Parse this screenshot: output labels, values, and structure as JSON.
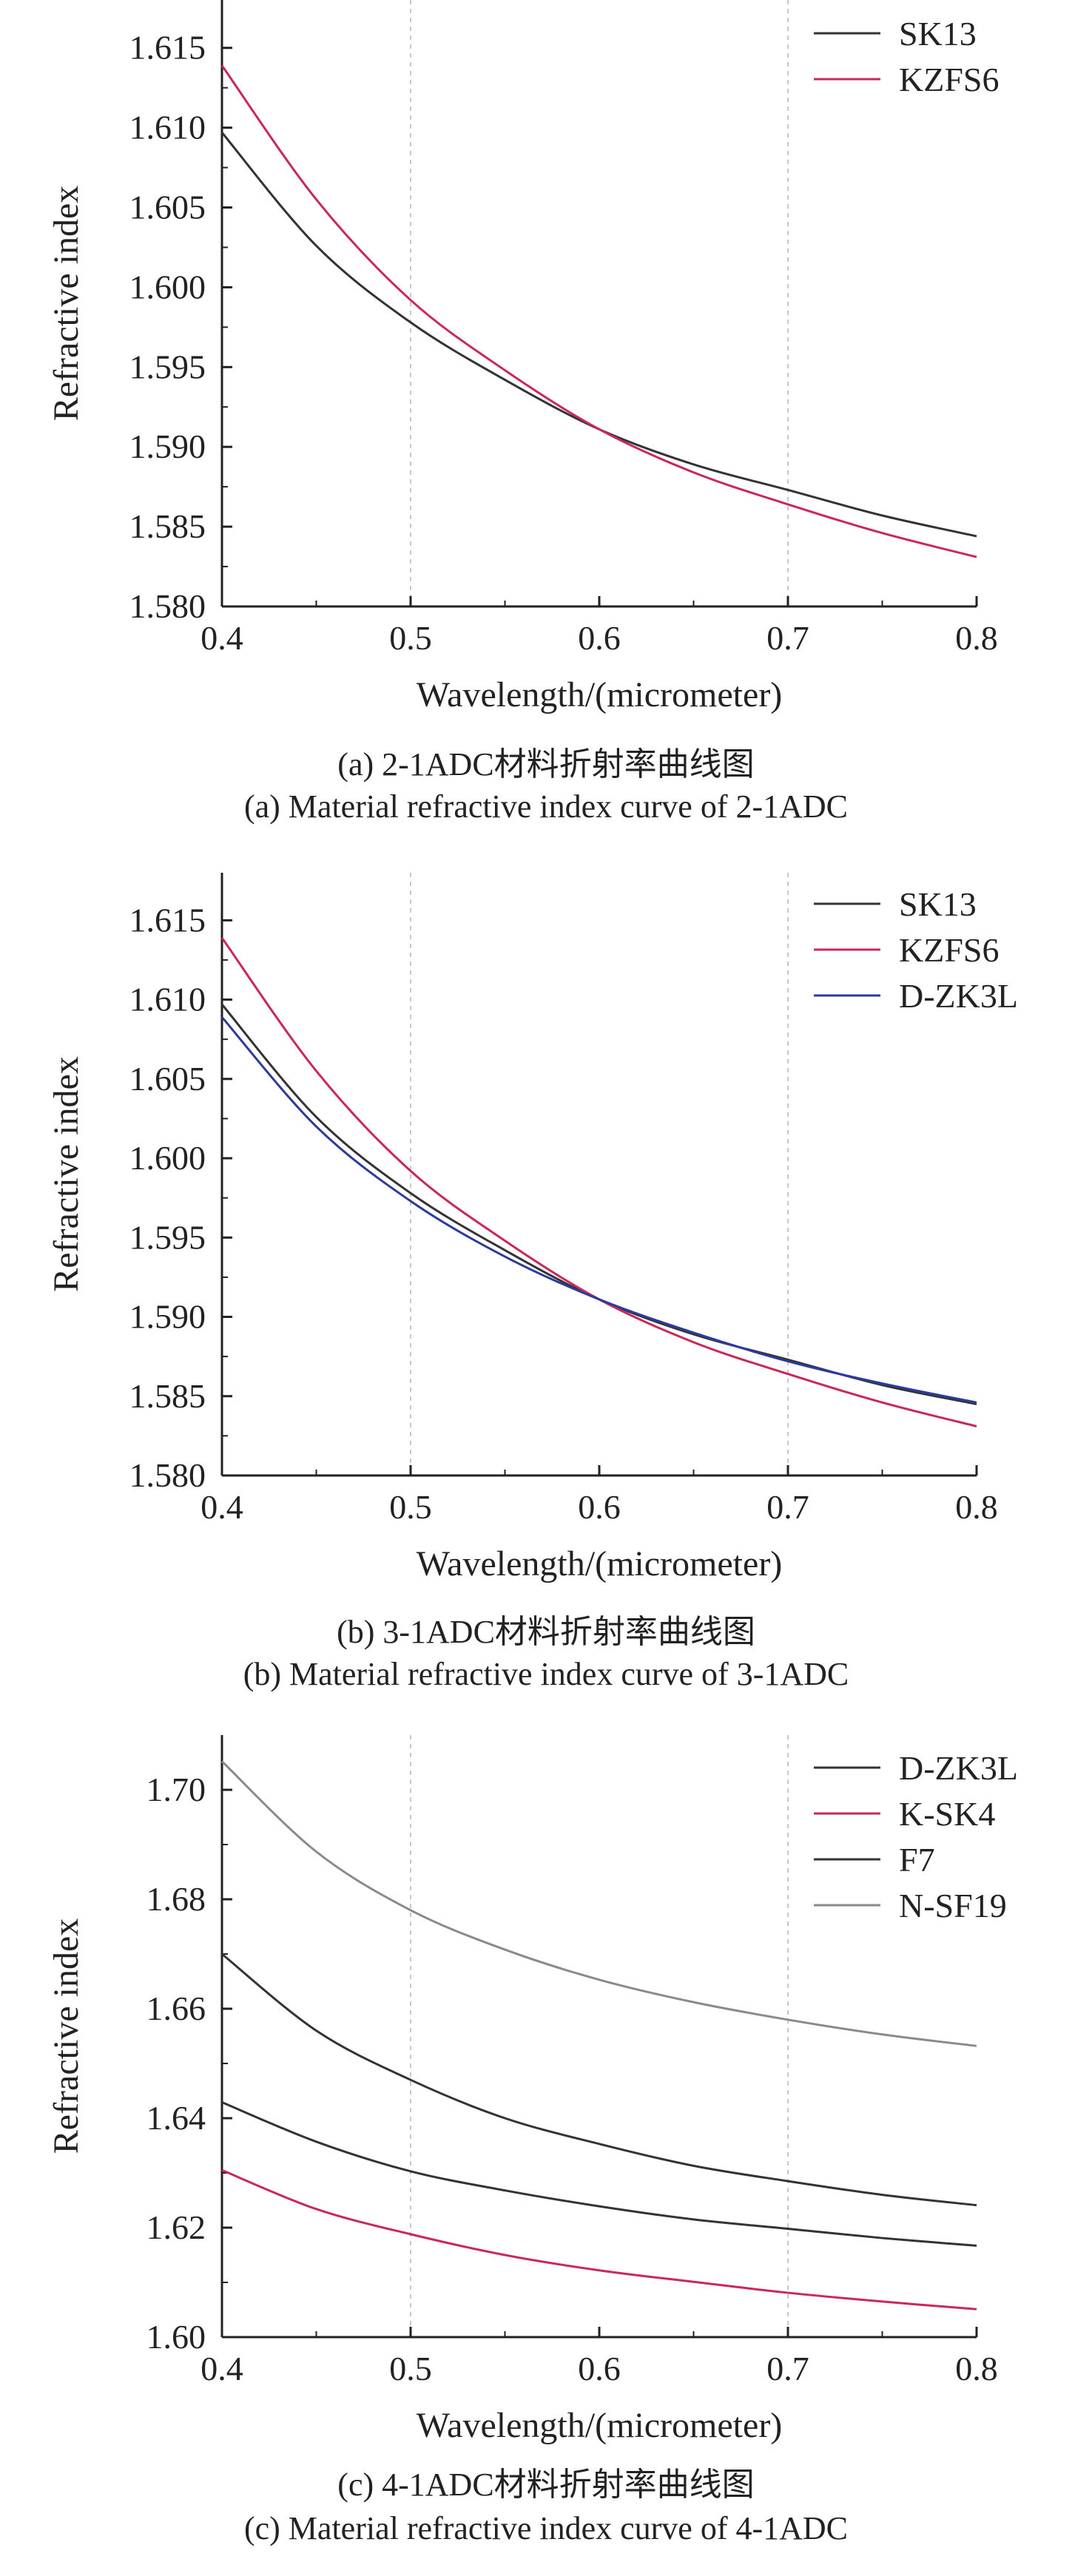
{
  "chart_data": [
    {
      "type": "line",
      "xlabel": "Wavelength/(micrometer)",
      "ylabel": "Refractive index",
      "xlim": [
        0.4,
        0.8
      ],
      "ylim": [
        1.58,
        1.618
      ],
      "xticks": [
        "0.4",
        "0.5",
        "0.6",
        "0.7",
        "0.8"
      ],
      "yticks": [
        "1.580",
        "1.585",
        "1.590",
        "1.595",
        "1.600",
        "1.605",
        "1.610",
        "1.615"
      ],
      "grid": "dashed vertical at 0.5 and 0.7",
      "legend": "top-right",
      "caption_cn": "(a) 2-1ADC材料折射率曲线图",
      "caption_en": "(a) Material refractive index curve of 2-1ADC",
      "x": [
        0.4,
        0.45,
        0.5,
        0.55,
        0.6,
        0.65,
        0.7,
        0.75,
        0.8
      ],
      "series": [
        {
          "name": "SK13",
          "color": "#333333",
          "values": [
            1.6097,
            1.6026,
            1.5978,
            1.5942,
            1.5911,
            1.5889,
            1.5873,
            1.5857,
            1.5844
          ]
        },
        {
          "name": "KZFS6",
          "color": "#c8285a",
          "values": [
            1.6139,
            1.6055,
            1.5992,
            1.5948,
            1.5911,
            1.5884,
            1.5864,
            1.5846,
            1.5831
          ]
        }
      ]
    },
    {
      "type": "line",
      "xlabel": "Wavelength/(micrometer)",
      "ylabel": "Refractive index",
      "xlim": [
        0.4,
        0.8
      ],
      "ylim": [
        1.58,
        1.618
      ],
      "xticks": [
        "0.4",
        "0.5",
        "0.6",
        "0.7",
        "0.8"
      ],
      "yticks": [
        "1.580",
        "1.585",
        "1.590",
        "1.595",
        "1.600",
        "1.605",
        "1.610",
        "1.615"
      ],
      "grid": "dashed vertical at 0.5 and 0.7",
      "legend": "top-right",
      "caption_cn": "(b) 3-1ADC材料折射率曲线图",
      "caption_en": "(b) Material refractive index curve of 3-1ADC",
      "x": [
        0.4,
        0.45,
        0.5,
        0.55,
        0.6,
        0.65,
        0.7,
        0.75,
        0.8
      ],
      "series": [
        {
          "name": "SK13",
          "color": "#333333",
          "values": [
            1.6097,
            1.6026,
            1.5978,
            1.5942,
            1.5911,
            1.5889,
            1.5873,
            1.5857,
            1.5845
          ]
        },
        {
          "name": "KZFS6",
          "color": "#c8285a",
          "values": [
            1.6139,
            1.6055,
            1.5992,
            1.5948,
            1.5911,
            1.5884,
            1.5864,
            1.5846,
            1.5831
          ]
        },
        {
          "name": "D-ZK3L",
          "color": "#2b3a9e",
          "values": [
            1.6089,
            1.602,
            1.5973,
            1.5938,
            1.5911,
            1.589,
            1.5872,
            1.5858,
            1.5846
          ]
        }
      ]
    },
    {
      "type": "line",
      "xlabel": "Wavelength/(micrometer)",
      "ylabel": "Refractive index",
      "xlim": [
        0.4,
        0.8
      ],
      "ylim": [
        1.6,
        1.71
      ],
      "xticks": [
        "0.4",
        "0.5",
        "0.6",
        "0.7",
        "0.8"
      ],
      "yticks": [
        "1.60",
        "1.62",
        "1.64",
        "1.66",
        "1.68",
        "1.70"
      ],
      "grid": "dashed vertical at 0.5 and 0.7",
      "legend": "top-right",
      "caption_cn": "(c) 4-1ADC材料折射率曲线图",
      "caption_en": "(c) Material refractive index curve of 4-1ADC",
      "x": [
        0.4,
        0.45,
        0.5,
        0.55,
        0.6,
        0.65,
        0.7,
        0.75,
        0.8
      ],
      "series": [
        {
          "name": "D-ZK3L",
          "color": "#333333",
          "values": [
            1.6429,
            1.6357,
            1.6303,
            1.6268,
            1.6239,
            1.6215,
            1.6198,
            1.6181,
            1.6167
          ]
        },
        {
          "name": "K-SK4",
          "color": "#c8285a",
          "values": [
            1.6305,
            1.6234,
            1.6188,
            1.615,
            1.6122,
            1.6101,
            1.6081,
            1.6065,
            1.6051
          ]
        },
        {
          "name": "F7",
          "color": "#333333",
          "values": [
            1.67,
            1.656,
            1.647,
            1.64,
            1.6353,
            1.6313,
            1.6285,
            1.626,
            1.6241
          ]
        },
        {
          "name": "N-SF19",
          "color": "#8a8a8a",
          "values": [
            1.7052,
            1.6887,
            1.678,
            1.6708,
            1.6653,
            1.6612,
            1.658,
            1.6553,
            1.6532
          ]
        }
      ]
    }
  ]
}
